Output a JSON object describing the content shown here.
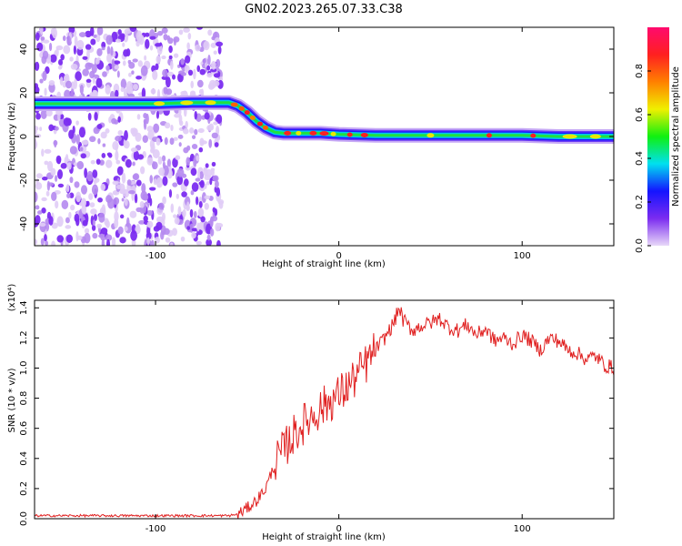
{
  "figure": {
    "title": "GN02.2023.265.07.33.C38"
  },
  "chart_data": [
    {
      "type": "heatmap",
      "name": "spectrogram",
      "xlabel": "Height of straight line (km)",
      "ylabel": "Frequency (Hz)",
      "xlim": [
        -166,
        150
      ],
      "ylim": [
        -50,
        50
      ],
      "xticks": [
        -100,
        0,
        100
      ],
      "yticks": [
        -40,
        -20,
        0,
        20,
        40
      ],
      "colorbar": {
        "label": "Normalized spectral amplitude",
        "range": [
          0.0,
          1.0
        ],
        "ticks": [
          0.0,
          0.2,
          0.4,
          0.6,
          0.8
        ],
        "colors": [
          "#e8d8f8",
          "#7b2cf0",
          "#1414ff",
          "#00e0f0",
          "#10f010",
          "#f0f000",
          "#ff8000",
          "#ff2020",
          "#ff0a6e"
        ]
      },
      "ridge": {
        "x": [
          -166,
          -100,
          -80,
          -60,
          -55,
          -50,
          -45,
          -40,
          -35,
          -30,
          -20,
          -10,
          0,
          20,
          40,
          60,
          80,
          100,
          120,
          150
        ],
        "y": [
          15,
          15,
          15.5,
          15.5,
          14,
          11,
          7,
          4,
          2,
          1.5,
          1.5,
          1.5,
          1,
          0.5,
          0.5,
          0.5,
          0.5,
          0.5,
          0,
          0
        ]
      },
      "noise_region": [
        -166,
        -64
      ]
    },
    {
      "type": "line",
      "name": "snr",
      "xlabel": "Height of straight line (km)",
      "ylabel": "SNR (10 * v/v)",
      "multiplier": "(x10⁴)",
      "xlim": [
        -166,
        150
      ],
      "ylim": [
        0,
        1.45
      ],
      "xticks": [
        -100,
        0,
        100
      ],
      "yticks": [
        0.0,
        0.2,
        0.4,
        0.6,
        0.8,
        1.0,
        1.2,
        1.4
      ],
      "color": "#e02020",
      "x": [
        -166,
        -120,
        -80,
        -60,
        -55,
        -50,
        -45,
        -40,
        -35,
        -30,
        -25,
        -20,
        -15,
        -10,
        -5,
        0,
        5,
        10,
        15,
        20,
        25,
        30,
        33,
        35,
        40,
        45,
        50,
        55,
        60,
        65,
        70,
        75,
        80,
        85,
        90,
        95,
        100,
        105,
        110,
        115,
        120,
        125,
        130,
        135,
        140,
        145,
        150
      ],
      "y": [
        0.02,
        0.02,
        0.02,
        0.02,
        0.03,
        0.07,
        0.12,
        0.2,
        0.36,
        0.46,
        0.55,
        0.62,
        0.68,
        0.73,
        0.78,
        0.82,
        0.88,
        0.95,
        1.03,
        1.12,
        1.2,
        1.3,
        1.4,
        1.32,
        1.25,
        1.28,
        1.3,
        1.33,
        1.27,
        1.25,
        1.29,
        1.22,
        1.26,
        1.18,
        1.2,
        1.16,
        1.22,
        1.18,
        1.12,
        1.2,
        1.18,
        1.12,
        1.1,
        1.06,
        1.08,
        1.02,
        1.0
      ]
    }
  ]
}
